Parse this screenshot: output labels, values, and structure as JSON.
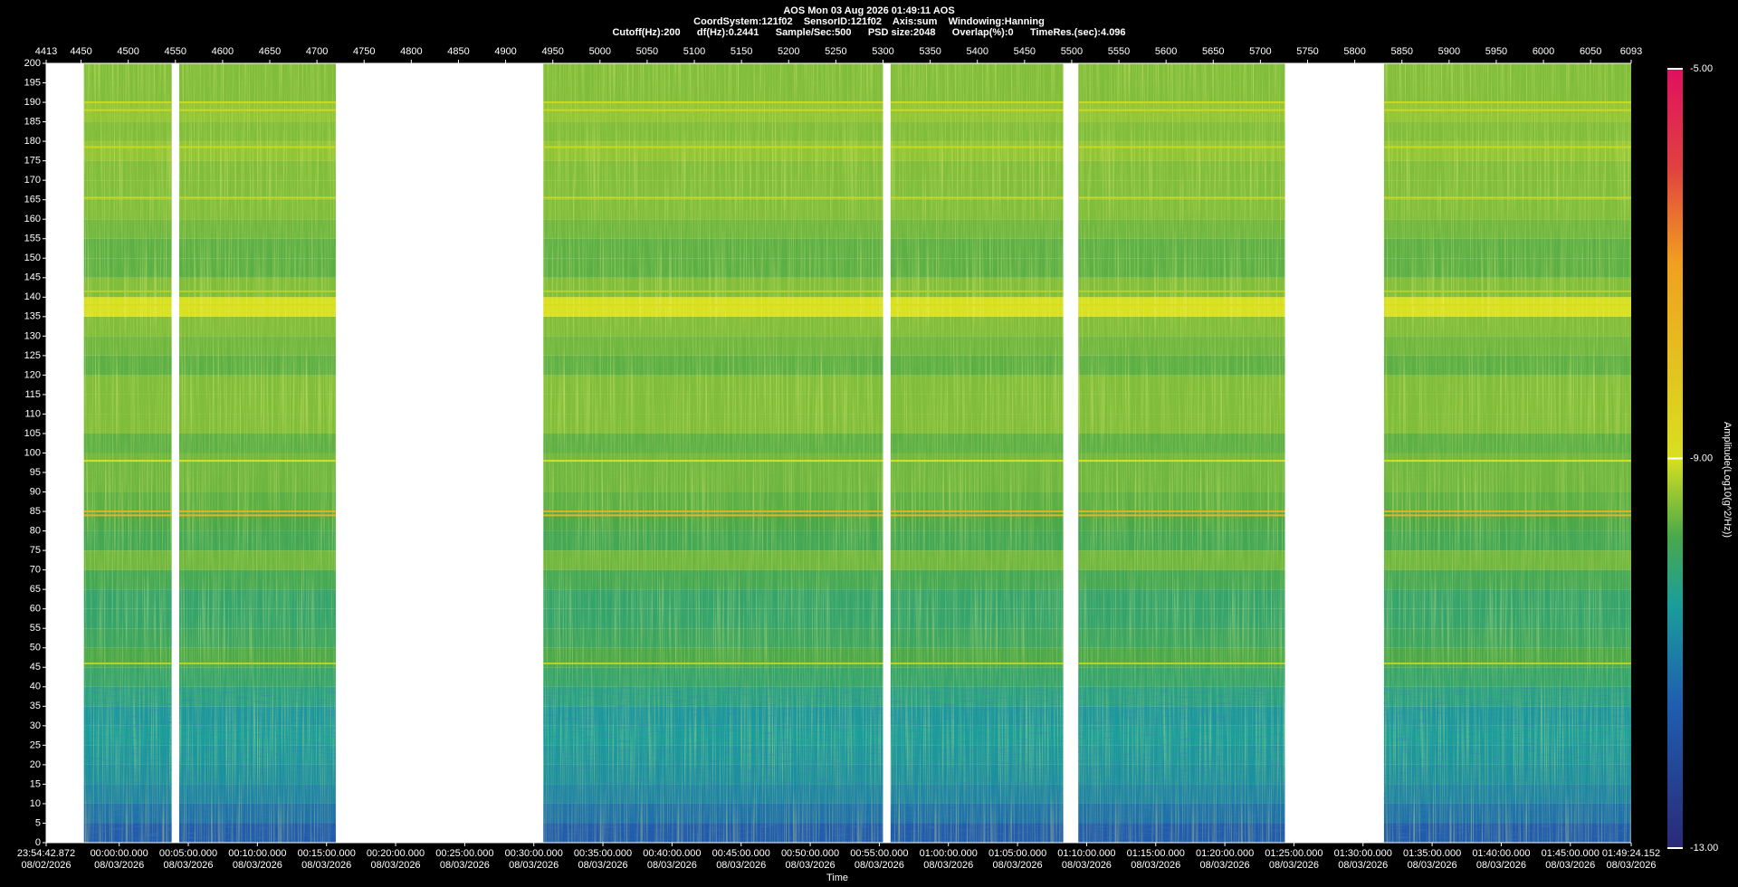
{
  "chart_data": {
    "type": "spectrogram",
    "title": "AOS  Mon 03 Aug 2026 01:49:11  AOS",
    "subtitle": "CoordSystem:121f02    SensorID:121f02    Axis:sum    Windowing:Hanning",
    "settings_text": "Cutoff(Hz):200      df(Hz):0.2441      Sample/Sec:500      PSD size:2048      Overlap(%):0      TimeRes.(sec):4.096",
    "x_label": "Time",
    "colorbar_label": "Amplitude(Log10(g^2/Hz))",
    "xlim": [
      4413,
      6093
    ],
    "xticks": [
      4413,
      4450,
      4500,
      4550,
      4600,
      4650,
      4700,
      4750,
      4800,
      4850,
      4900,
      4950,
      5000,
      5050,
      5100,
      5150,
      5200,
      5250,
      5300,
      5350,
      5400,
      5450,
      5500,
      5550,
      5600,
      5650,
      5700,
      5750,
      5800,
      5850,
      5900,
      5950,
      6000,
      6050,
      6093
    ],
    "time_ticks": [
      {
        "value": 4413,
        "label": "23:54:42.872\n08/02/2026"
      },
      {
        "value": 4490.42,
        "label": "00:00:00.000\n08/03/2026"
      },
      {
        "value": 4563.66,
        "label": "00:05:00.000\n08/03/2026"
      },
      {
        "value": 4636.9,
        "label": "00:10:00.000\n08/03/2026"
      },
      {
        "value": 4710.15,
        "label": "00:15:00.000\n08/03/2026"
      },
      {
        "value": 4783.39,
        "label": "00:20:00.000\n08/03/2026"
      },
      {
        "value": 4856.63,
        "label": "00:25:00.000\n08/03/2026"
      },
      {
        "value": 4929.87,
        "label": "00:30:00.000\n08/03/2026"
      },
      {
        "value": 5003.11,
        "label": "00:35:00.000\n08/03/2026"
      },
      {
        "value": 5076.36,
        "label": "00:40:00.000\n08/03/2026"
      },
      {
        "value": 5149.6,
        "label": "00:45:00.000\n08/03/2026"
      },
      {
        "value": 5222.84,
        "label": "00:50:00.000\n08/03/2026"
      },
      {
        "value": 5296.08,
        "label": "00:55:00.000\n08/03/2026"
      },
      {
        "value": 5369.32,
        "label": "01:00:00.000\n08/03/2026"
      },
      {
        "value": 5442.57,
        "label": "01:05:00.000\n08/03/2026"
      },
      {
        "value": 5515.81,
        "label": "01:10:00.000\n08/03/2026"
      },
      {
        "value": 5589.05,
        "label": "01:15:00.000\n08/03/2026"
      },
      {
        "value": 5662.29,
        "label": "01:20:00.000\n08/03/2026"
      },
      {
        "value": 5735.53,
        "label": "01:25:00.000\n08/03/2026"
      },
      {
        "value": 5808.78,
        "label": "01:30:00.000\n08/03/2026"
      },
      {
        "value": 5882.02,
        "label": "01:35:00.000\n08/03/2026"
      },
      {
        "value": 5955.26,
        "label": "01:40:00.000\n08/03/2026"
      },
      {
        "value": 6028.5,
        "label": "01:45:00.000\n08/03/2026"
      },
      {
        "value": 6093,
        "label": "01:49:24.152\n08/03/2026"
      }
    ],
    "ylim": [
      0,
      200
    ],
    "yticks": [
      0,
      5,
      10,
      15,
      20,
      25,
      30,
      35,
      40,
      45,
      50,
      55,
      60,
      65,
      70,
      75,
      80,
      85,
      90,
      95,
      100,
      105,
      110,
      115,
      120,
      125,
      130,
      135,
      140,
      145,
      150,
      155,
      160,
      165,
      170,
      175,
      180,
      185,
      190,
      195,
      200
    ],
    "segments": [
      [
        4453,
        4546
      ],
      [
        4554,
        4720
      ],
      [
        4940,
        5300
      ],
      [
        5308,
        5491
      ],
      [
        5507,
        5726
      ],
      [
        5831,
        6093
      ]
    ],
    "bins": [
      0,
      5,
      10,
      15,
      20,
      25,
      30,
      35,
      40,
      45,
      50,
      55,
      60,
      65,
      70,
      75,
      80,
      85,
      90,
      95,
      100,
      105,
      110,
      115,
      120,
      125,
      130,
      135,
      140,
      145,
      150,
      155,
      160,
      165,
      170,
      175,
      180,
      185,
      190,
      195,
      200
    ],
    "amplitude": [
      -11.6,
      -11.2,
      -10.9,
      -10.7,
      -10.6,
      -10.5,
      -10.6,
      -10.3,
      -10.1,
      -9.8,
      -10.0,
      -10.1,
      -10.1,
      -9.9,
      -9.6,
      -9.9,
      -9.8,
      -9.7,
      -9.6,
      -9.6,
      -9.7,
      -9.5,
      -9.5,
      -9.5,
      -9.7,
      -9.6,
      -9.5,
      -9.0,
      -9.5,
      -9.7,
      -9.7,
      -9.6,
      -9.5,
      -9.5,
      -9.5,
      -9.4,
      -9.5,
      -9.4,
      -9.5,
      -9.5
    ],
    "lines": [
      {
        "frequency": 190,
        "amplitude": -9.1
      },
      {
        "frequency": 188,
        "amplitude": -9.1
      },
      {
        "frequency": 178.5,
        "amplitude": -9.1
      },
      {
        "frequency": 165.5,
        "amplitude": -9.1
      },
      {
        "frequency": 141.5,
        "amplitude": -9.2
      },
      {
        "frequency": 138,
        "amplitude": -8.9
      },
      {
        "frequency": 98,
        "amplitude": -9.0
      },
      {
        "frequency": 85,
        "amplitude": -7.5
      },
      {
        "frequency": 84,
        "amplitude": -7.6
      },
      {
        "frequency": 46,
        "amplitude": -9.2
      }
    ],
    "clim": [
      -13,
      -5
    ],
    "cticks": [
      {
        "value": -13,
        "label": "-13.00"
      },
      {
        "value": -9,
        "label": "-9.00"
      },
      {
        "value": -5,
        "label": "-5.00"
      }
    ],
    "colormap": [
      {
        "value": -13,
        "color": "#2a2a78"
      },
      {
        "value": -11.5,
        "color": "#1f5fb0"
      },
      {
        "value": -10.5,
        "color": "#1a9e9a"
      },
      {
        "value": -9.8,
        "color": "#4aa84a"
      },
      {
        "value": -9,
        "color": "#d8e020"
      },
      {
        "value": -7,
        "color": "#f0a020"
      },
      {
        "value": -6,
        "color": "#e04040"
      },
      {
        "value": -5,
        "color": "#e01060"
      }
    ]
  }
}
